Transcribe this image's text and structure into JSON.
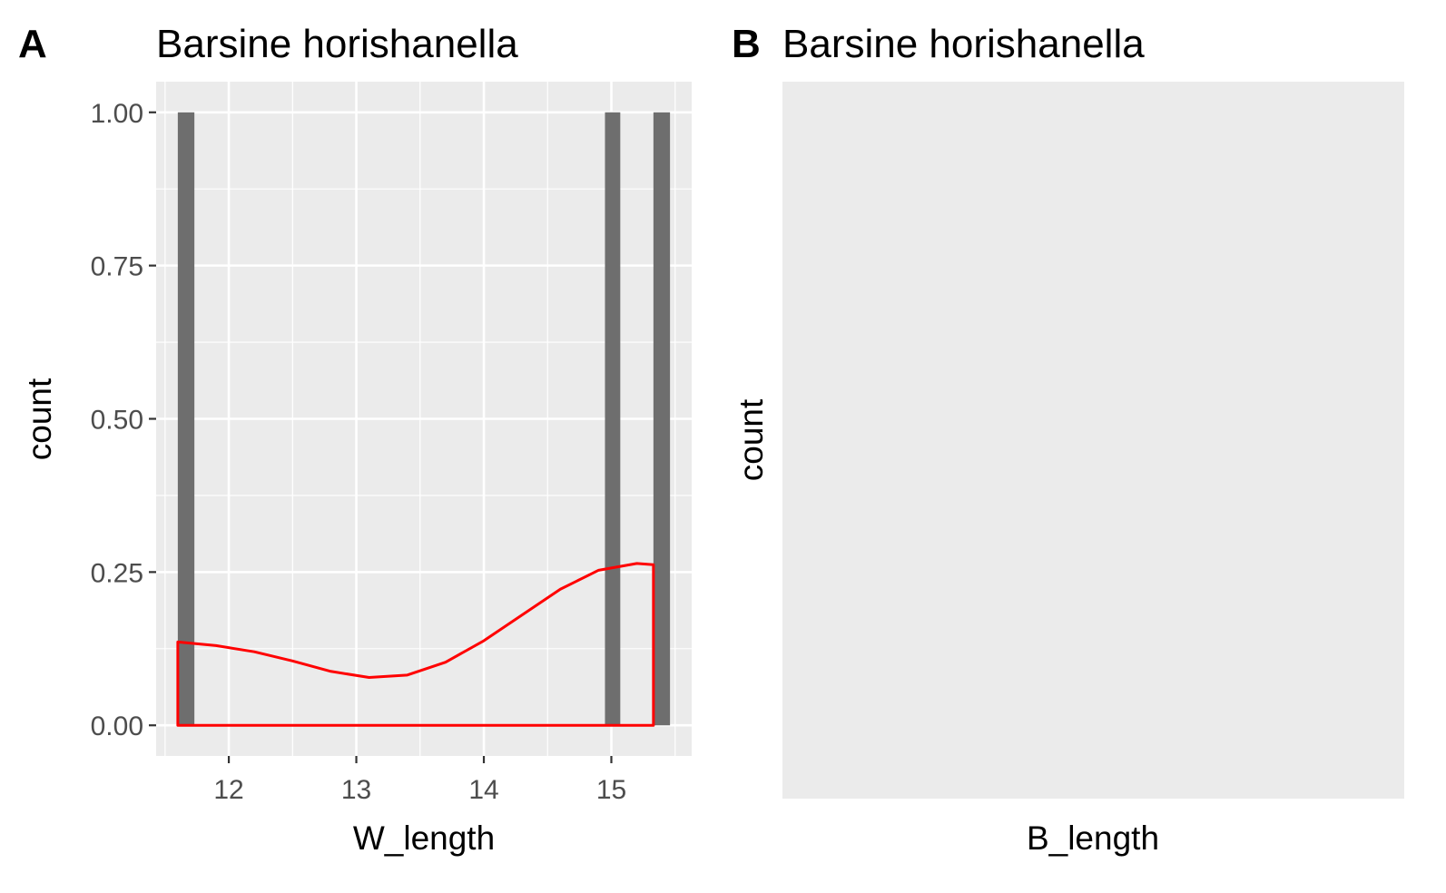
{
  "panels": [
    {
      "tag": "A",
      "title": "Barsine horishanella",
      "xlabel": "W_length",
      "ylabel": "count"
    },
    {
      "tag": "B",
      "title": "Barsine horishanella",
      "xlabel": "B_length",
      "ylabel": "count"
    }
  ],
  "chart_data": [
    {
      "type": "bar",
      "title": "Barsine horishanella",
      "xlabel": "W_length",
      "ylabel": "count",
      "xlim": [
        11.43,
        15.63
      ],
      "ylim": [
        -0.05,
        1.05
      ],
      "x_ticks": [
        "12",
        "13",
        "14",
        "15"
      ],
      "x_tick_values": [
        12,
        13,
        14,
        15
      ],
      "y_ticks": [
        "0.00",
        "0.25",
        "0.50",
        "0.75",
        "1.00"
      ],
      "y_tick_values": [
        0,
        0.25,
        0.5,
        0.75,
        1.0
      ],
      "grid": true,
      "bar_color": "#6e6e6e",
      "bars": [
        {
          "x0": 11.6,
          "x1": 11.73,
          "count": 1
        },
        {
          "x0": 14.95,
          "x1": 15.07,
          "count": 1
        },
        {
          "x0": 15.33,
          "x1": 15.46,
          "count": 1
        }
      ],
      "density": {
        "color": "#ff0000",
        "x": [
          11.6,
          11.9,
          12.2,
          12.5,
          12.8,
          13.1,
          13.4,
          13.7,
          14.0,
          14.3,
          14.6,
          14.9,
          15.2,
          15.33
        ],
        "y": [
          0.136,
          0.13,
          0.12,
          0.105,
          0.088,
          0.078,
          0.082,
          0.103,
          0.138,
          0.18,
          0.222,
          0.253,
          0.264,
          0.262
        ]
      }
    },
    {
      "type": "bar",
      "title": "Barsine horishanella",
      "xlabel": "B_length",
      "ylabel": "count",
      "grid": false,
      "bars": []
    }
  ]
}
